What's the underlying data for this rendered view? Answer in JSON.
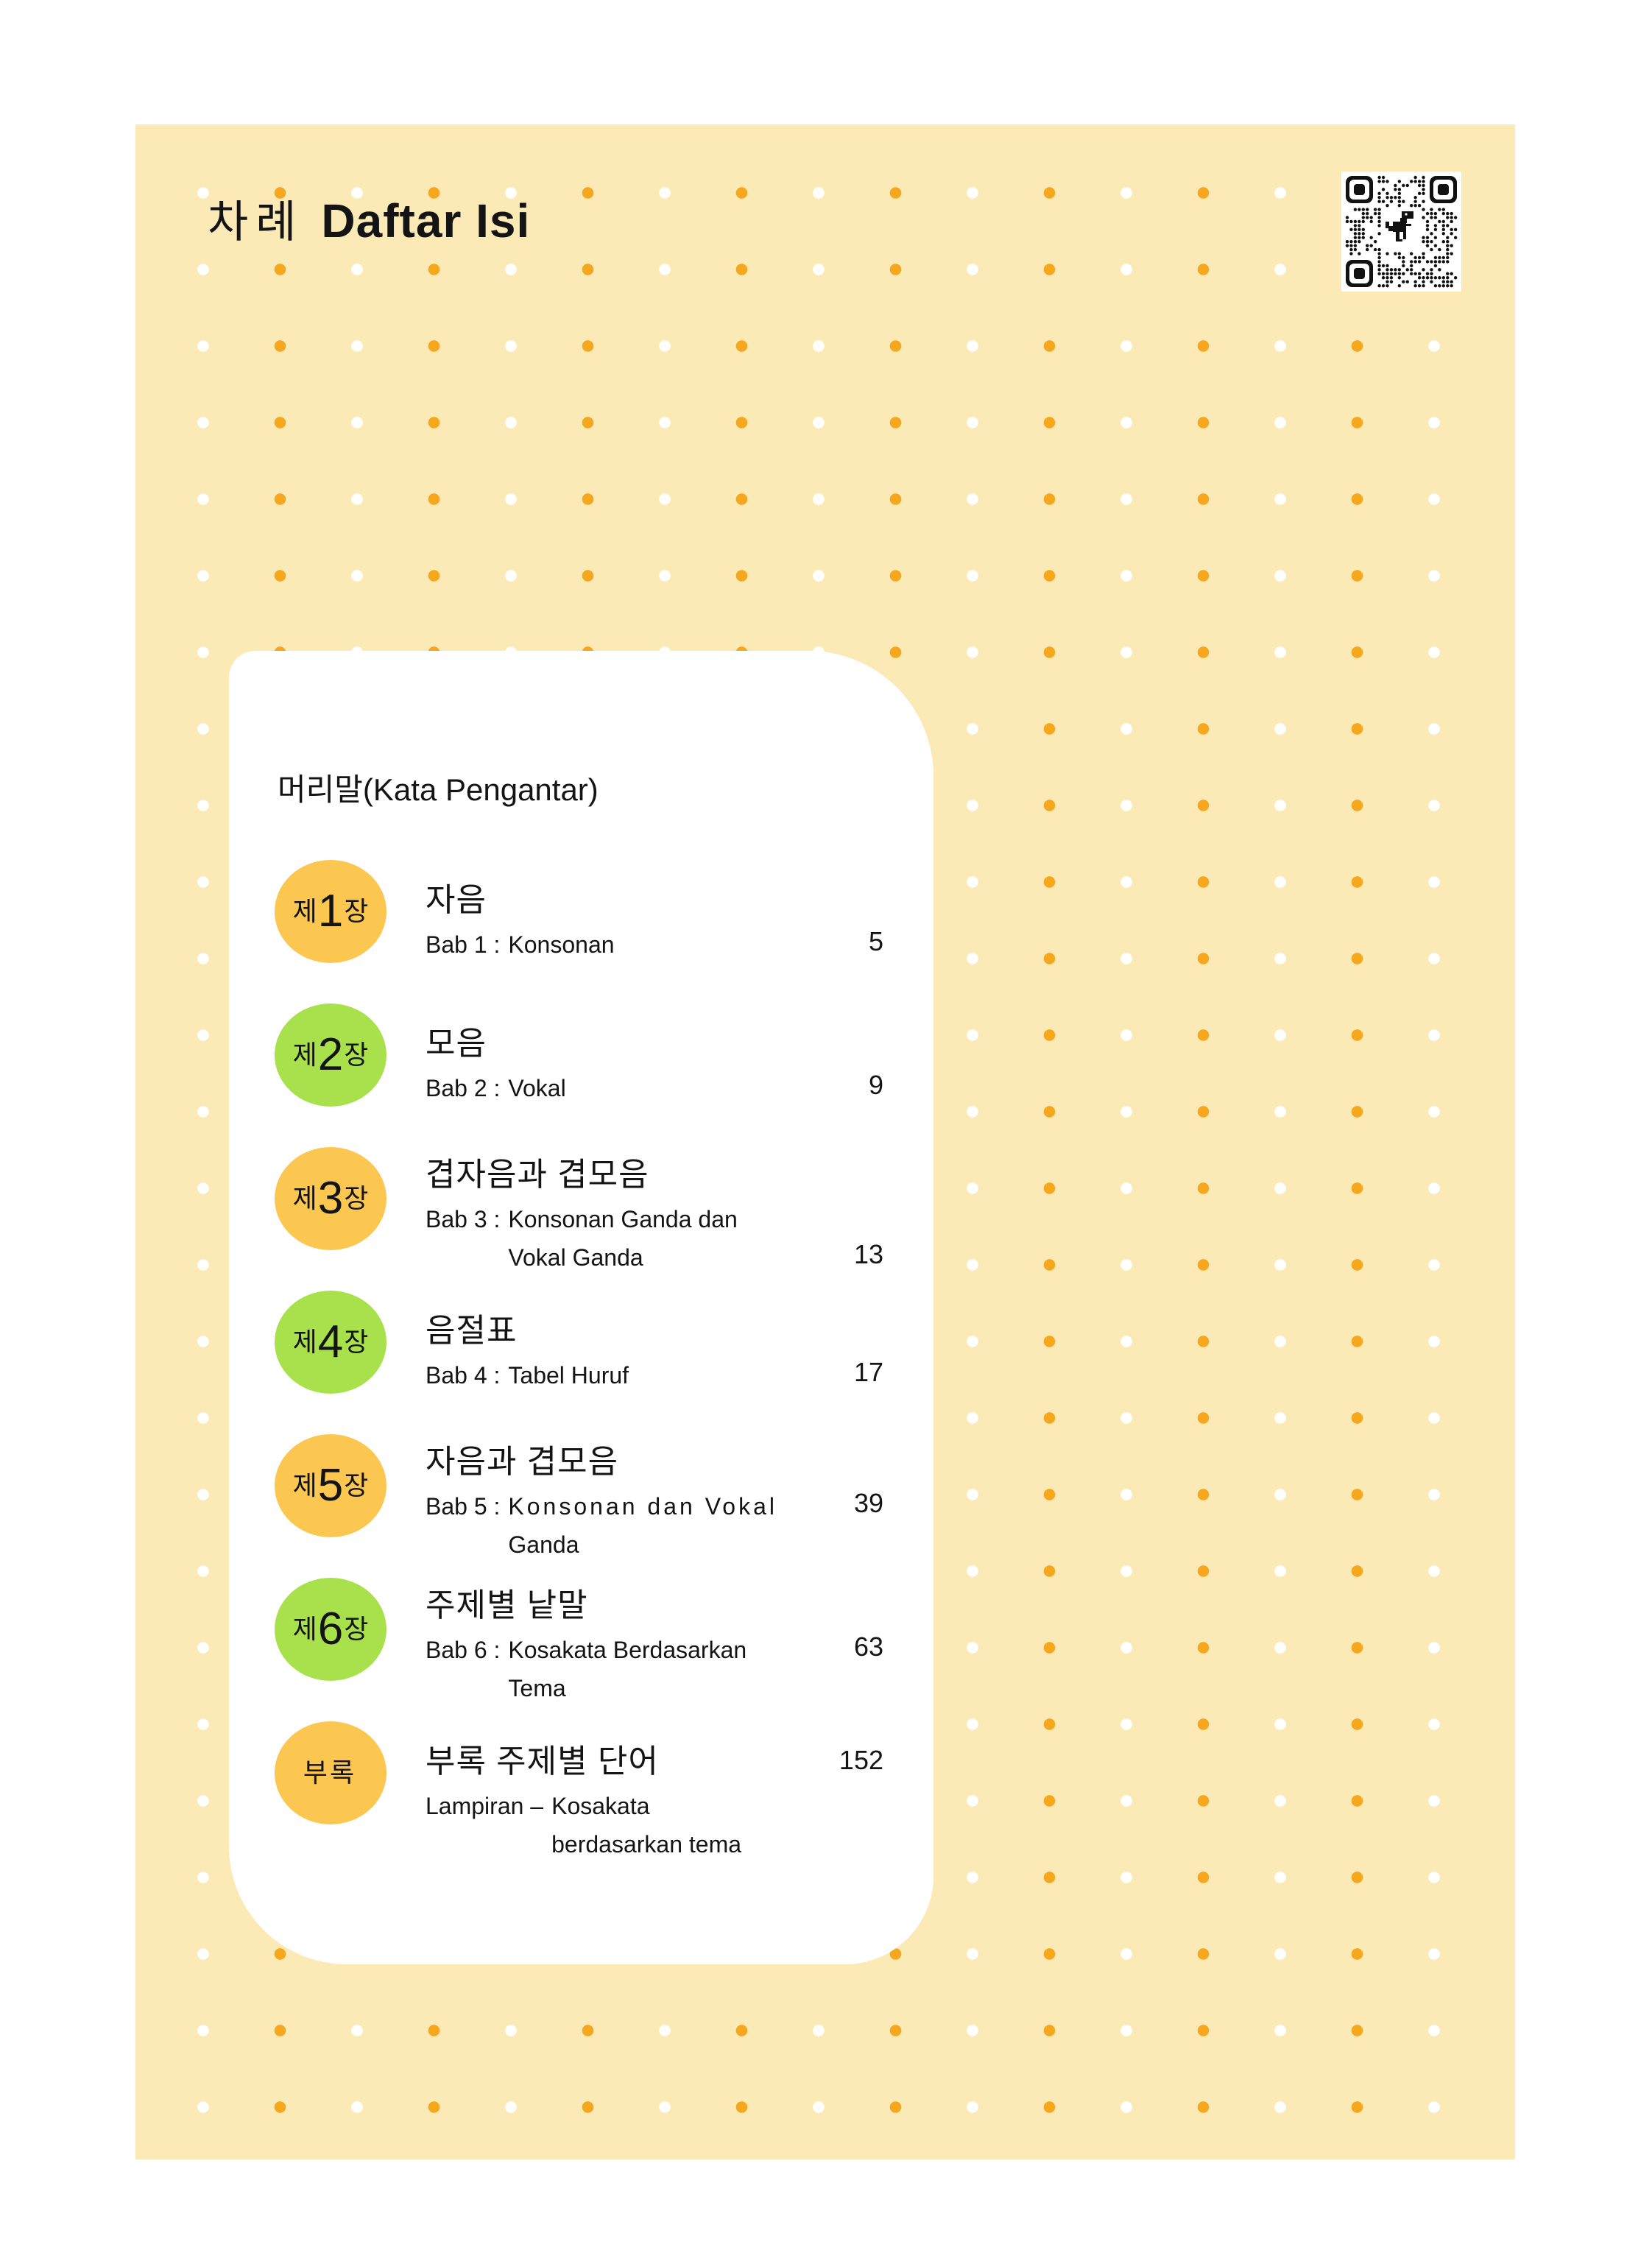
{
  "header": {
    "title_ko": "차례",
    "title_id": "Daftar Isi"
  },
  "qr": {
    "icon": "qr-code-with-dino-icon"
  },
  "preface": {
    "label": "머리말(Kata Pengantar)"
  },
  "toc": {
    "entries": [
      {
        "badge_pre": "제",
        "badge_num": "1",
        "badge_suf": "장",
        "title": "자음",
        "sub_prefix": "Bab 1 :",
        "sub_line1": "Konsonan",
        "sub_line2": "",
        "page": "5"
      },
      {
        "badge_pre": "제",
        "badge_num": "2",
        "badge_suf": "장",
        "title": "모음",
        "sub_prefix": "Bab 2 :",
        "sub_line1": "Vokal",
        "sub_line2": "",
        "page": "9"
      },
      {
        "badge_pre": "제",
        "badge_num": "3",
        "badge_suf": "장",
        "title": "겹자음과 겹모음",
        "sub_prefix": "Bab 3 :",
        "sub_line1": "Konsonan Ganda dan",
        "sub_line2": "Vokal Ganda",
        "page": "13"
      },
      {
        "badge_pre": "제",
        "badge_num": "4",
        "badge_suf": "장",
        "title": "음절표",
        "sub_prefix": "Bab 4 :",
        "sub_line1": "Tabel Huruf",
        "sub_line2": "",
        "page": "17"
      },
      {
        "badge_pre": "제",
        "badge_num": "5",
        "badge_suf": "장",
        "title": "자음과 겹모음",
        "sub_prefix": "Bab 5 :",
        "sub_line1": "Konsonan dan Vokal",
        "sub_line2": "Ganda",
        "page": "39"
      },
      {
        "badge_pre": "제",
        "badge_num": "6",
        "badge_suf": "장",
        "title": "주제별 낱말",
        "sub_prefix": "Bab 6 :",
        "sub_line1": "Kosakata Berdasarkan",
        "sub_line2": "Tema",
        "page": "63"
      },
      {
        "badge_pre": "부록",
        "badge_num": "",
        "badge_suf": "",
        "title": "부록 주제별 단어",
        "sub_prefix": "Lampiran –",
        "sub_line1": "Kosakata",
        "sub_line2": "berdasarkan tema",
        "page": "152"
      }
    ]
  },
  "colors": {
    "background_yellow": "#FCEAB6",
    "dot_orange": "#F5A71D",
    "dot_white": "#FFFFFF",
    "circle_orange": "#FBC751",
    "circle_green": "#A8E14C",
    "card_white": "#FFFFFF",
    "text_black": "#141414",
    "qr_black": "#111111"
  }
}
